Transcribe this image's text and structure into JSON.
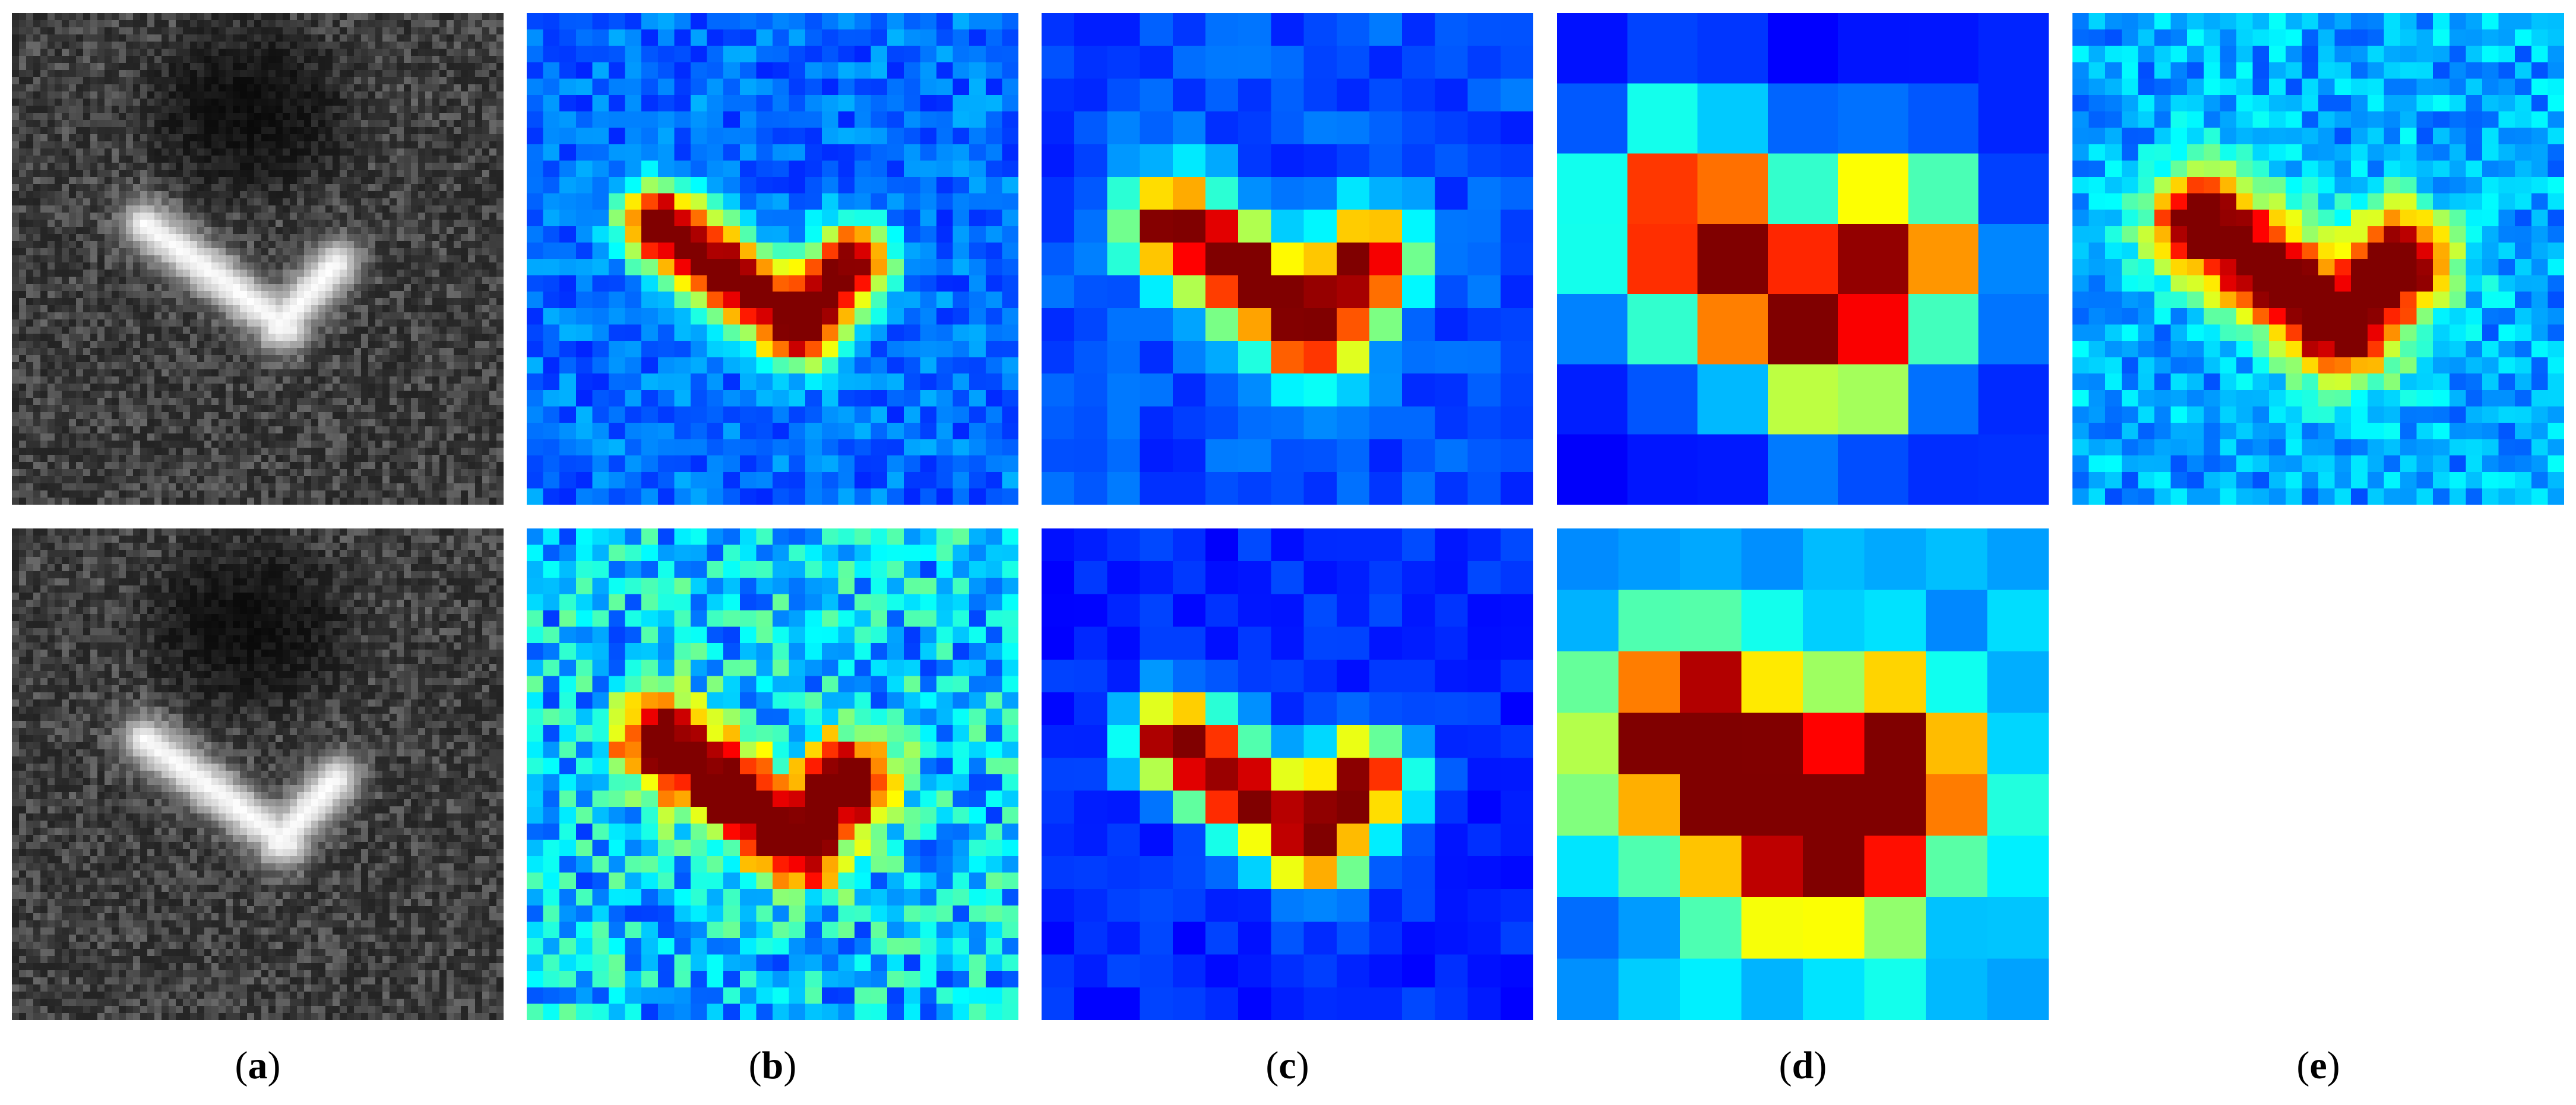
{
  "figure": {
    "labels": [
      {
        "open": "(",
        "letter": "a",
        "close": ")"
      },
      {
        "open": "(",
        "letter": "b",
        "close": ")"
      },
      {
        "open": "(",
        "letter": "c",
        "close": ")"
      },
      {
        "open": "(",
        "letter": "d",
        "close": ")"
      },
      {
        "open": "(",
        "letter": "e",
        "close": ")"
      }
    ],
    "panels": [
      {
        "id": "a1",
        "row": 1,
        "col": "a",
        "kind": "sar-grayscale",
        "colormap": "gray"
      },
      {
        "id": "b1",
        "row": 1,
        "col": "b",
        "kind": "heatmap",
        "colormap": "jet",
        "grid": 30
      },
      {
        "id": "c1",
        "row": 1,
        "col": "c",
        "kind": "heatmap",
        "colormap": "jet",
        "grid": 15
      },
      {
        "id": "d1",
        "row": 1,
        "col": "d",
        "kind": "heatmap",
        "colormap": "jet",
        "grid": 7
      },
      {
        "id": "e1",
        "row": 1,
        "col": "e",
        "kind": "heatmap",
        "colormap": "jet",
        "grid": 30
      },
      {
        "id": "a2",
        "row": 2,
        "col": "a",
        "kind": "sar-grayscale",
        "colormap": "gray"
      },
      {
        "id": "b2",
        "row": 2,
        "col": "b",
        "kind": "heatmap",
        "colormap": "jet",
        "grid": 30
      },
      {
        "id": "c2",
        "row": 2,
        "col": "c",
        "kind": "heatmap",
        "colormap": "jet",
        "grid": 15
      },
      {
        "id": "d2",
        "row": 2,
        "col": "d",
        "kind": "heatmap",
        "colormap": "jet",
        "grid": 8
      }
    ]
  }
}
